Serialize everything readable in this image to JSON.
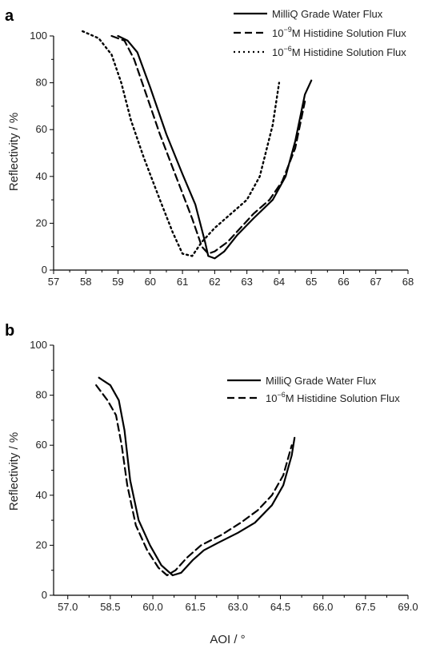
{
  "chart_data": [
    {
      "panel": "a",
      "type": "line",
      "xlabel": "",
      "ylabel": "Reflectivity / %",
      "xlim": [
        57,
        68
      ],
      "ylim": [
        0,
        100
      ],
      "xticks": [
        "57",
        "58",
        "59",
        "60",
        "61",
        "62",
        "63",
        "64",
        "65",
        "66",
        "67",
        "68"
      ],
      "yticks": [
        "0",
        "20",
        "40",
        "60",
        "80",
        "100"
      ],
      "legend_position": "top-right",
      "series": [
        {
          "name": "MilliQ Grade Water Flux",
          "dash": "solid",
          "legend": {
            "prefix": "MilliQ Grade Water Flux",
            "sup": "",
            "suffix": ""
          },
          "x": [
            59.0,
            59.3,
            59.6,
            60.0,
            60.5,
            61.0,
            61.4,
            61.7,
            61.8,
            62.0,
            62.3,
            62.7,
            63.2,
            63.8,
            64.2,
            64.5,
            64.8,
            65.0
          ],
          "y": [
            100,
            98,
            93,
            78,
            58,
            41,
            28,
            12,
            6,
            5,
            8,
            15,
            22,
            30,
            40,
            55,
            75,
            81
          ]
        },
        {
          "name": "10^-9 M Histidine Solution Flux",
          "dash": "dashed",
          "legend": {
            "prefix": "10",
            "sup": "−9",
            "suffix": "M Histidine Solution Flux"
          },
          "x": [
            58.8,
            59.2,
            59.5,
            59.8,
            60.3,
            60.8,
            61.3,
            61.6,
            61.8,
            62.0,
            62.4,
            62.8,
            63.2,
            63.7,
            64.1,
            64.5,
            64.8
          ],
          "y": [
            100,
            98,
            90,
            78,
            58,
            40,
            22,
            10,
            7,
            8,
            12,
            18,
            24,
            30,
            38,
            52,
            72
          ]
        },
        {
          "name": "10^-6 M Histidine Solution Flux",
          "dash": "dotted",
          "legend": {
            "prefix": "10",
            "sup": "−6",
            "suffix": "M Histidine Solution Flux"
          },
          "x": [
            57.9,
            58.4,
            58.8,
            59.1,
            59.4,
            59.8,
            60.3,
            60.7,
            61.0,
            61.3,
            61.6,
            62.0,
            62.5,
            63.0,
            63.4,
            63.8,
            64.0
          ],
          "y": [
            102,
            99,
            92,
            80,
            64,
            48,
            30,
            16,
            7,
            6,
            12,
            18,
            24,
            30,
            40,
            62,
            80
          ]
        }
      ]
    },
    {
      "panel": "b",
      "type": "line",
      "xlabel": "AOI / °",
      "ylabel": "Reflectivity / %",
      "xlim": [
        56.5,
        69.0
      ],
      "ylim": [
        0,
        100
      ],
      "xticks": [
        "57.0",
        "58.5",
        "60.0",
        "61.5",
        "63.0",
        "64.5",
        "66.0",
        "67.5",
        "69.0"
      ],
      "xtick_values": [
        57.0,
        58.5,
        60.0,
        61.5,
        63.0,
        64.5,
        66.0,
        67.5,
        69.0
      ],
      "yticks": [
        "0",
        "20",
        "40",
        "60",
        "80",
        "100"
      ],
      "legend_position": "top-right",
      "series": [
        {
          "name": "MilliQ Grade Water Flux",
          "dash": "solid",
          "legend": {
            "prefix": "MilliQ Grade Water Flux",
            "sup": "",
            "suffix": ""
          },
          "x": [
            58.1,
            58.5,
            58.8,
            59.0,
            59.2,
            59.5,
            59.9,
            60.3,
            60.7,
            61.0,
            61.4,
            61.8,
            62.3,
            63.0,
            63.6,
            64.2,
            64.6,
            64.9,
            65.0
          ],
          "y": [
            87,
            84,
            78,
            66,
            46,
            30,
            20,
            12,
            8,
            9,
            14,
            18,
            21,
            25,
            29,
            36,
            44,
            56,
            63
          ]
        },
        {
          "name": "10^-6 M Histidine Solution Flux",
          "dash": "dashed",
          "legend": {
            "prefix": "10",
            "sup": "−6",
            "suffix": "M Histidine Solution Flux"
          },
          "x": [
            58.0,
            58.4,
            58.7,
            58.9,
            59.1,
            59.4,
            59.8,
            60.2,
            60.5,
            60.8,
            61.2,
            61.7,
            62.4,
            63.1,
            63.7,
            64.2,
            64.6,
            64.9
          ],
          "y": [
            84,
            78,
            72,
            60,
            44,
            28,
            18,
            11,
            8,
            10,
            15,
            20,
            24,
            29,
            34,
            40,
            48,
            60
          ]
        }
      ]
    }
  ],
  "panels": {
    "a": {
      "letter": "a"
    },
    "b": {
      "letter": "b"
    }
  }
}
